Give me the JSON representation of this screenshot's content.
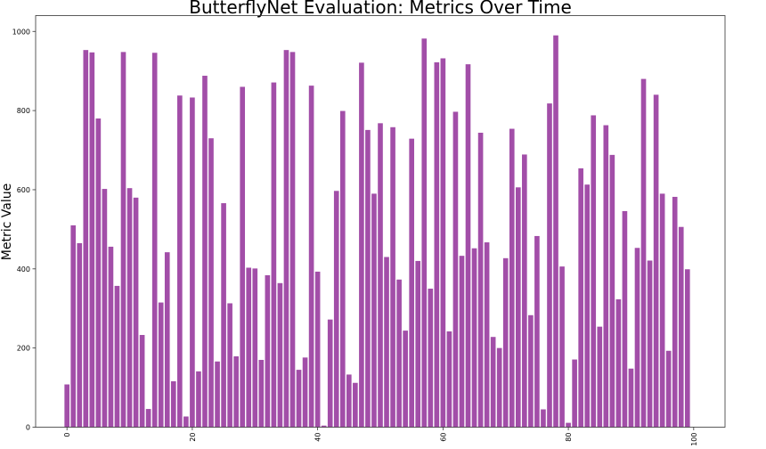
{
  "chart_data": {
    "type": "bar",
    "title": "ButterflyNet Evaluation: Metrics Over Time",
    "xlabel": "",
    "ylabel": "Metric Value",
    "bar_color": "#a24ea8",
    "xlim": [
      -5,
      105
    ],
    "ylim": [
      0,
      1040
    ],
    "x_ticks": [
      0,
      20,
      40,
      60,
      80,
      100
    ],
    "y_ticks": [
      0,
      200,
      400,
      600,
      800,
      1000
    ],
    "grid": false,
    "x": [
      0,
      1,
      2,
      3,
      4,
      5,
      6,
      7,
      8,
      9,
      10,
      11,
      12,
      13,
      14,
      15,
      16,
      17,
      18,
      19,
      20,
      21,
      22,
      23,
      24,
      25,
      26,
      27,
      28,
      29,
      30,
      31,
      32,
      33,
      34,
      35,
      36,
      37,
      38,
      39,
      40,
      41,
      42,
      43,
      44,
      45,
      46,
      47,
      48,
      49,
      50,
      51,
      52,
      53,
      54,
      55,
      56,
      57,
      58,
      59,
      60,
      61,
      62,
      63,
      64,
      65,
      66,
      67,
      68,
      69,
      70,
      71,
      72,
      73,
      74,
      75,
      76,
      77,
      78,
      79,
      80,
      81,
      82,
      83,
      84,
      85,
      86,
      87,
      88,
      89,
      90,
      91,
      92,
      93,
      94,
      95,
      96,
      97,
      98,
      99
    ],
    "values": [
      108,
      510,
      465,
      953,
      947,
      780,
      602,
      456,
      357,
      948,
      604,
      580,
      233,
      46,
      946,
      315,
      442,
      116,
      838,
      27,
      833,
      141,
      888,
      730,
      166,
      566,
      313,
      179,
      860,
      403,
      401,
      170,
      384,
      871,
      364,
      953,
      948,
      145,
      176,
      863,
      393,
      4,
      272,
      597,
      799,
      133,
      112,
      921,
      751,
      590,
      768,
      430,
      758,
      373,
      244,
      729,
      420,
      982,
      350,
      922,
      932,
      242,
      797,
      433,
      917,
      452,
      744,
      467,
      228,
      200,
      427,
      754,
      606,
      689,
      283,
      483,
      45,
      818,
      990,
      406,
      11,
      171,
      654,
      613,
      788,
      254,
      763,
      688,
      323,
      546,
      148,
      453,
      880,
      421,
      840,
      590,
      193,
      582,
      506,
      399
    ]
  }
}
